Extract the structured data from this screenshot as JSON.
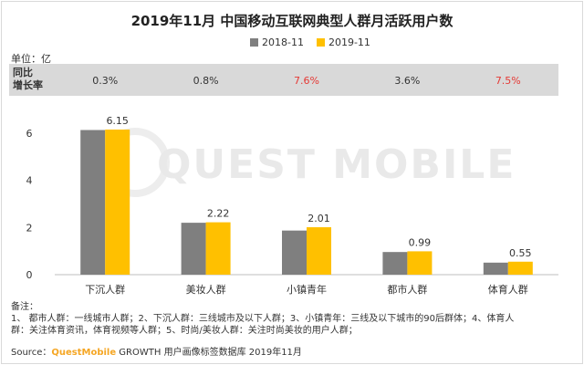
{
  "title": "2019年11月 中国移动互联网典型人群月活跃用户数",
  "unit": "单位：亿",
  "growth_label": "同比\n增长率",
  "growth_rates": [
    "0.3%",
    "0.8%",
    "7.6%",
    "3.6%",
    "7.5%"
  ],
  "growth_colors": [
    "#333333",
    "#333333",
    "#e53935",
    "#333333",
    "#e53935"
  ],
  "watermark": "QUEST MOBILE",
  "notes": {
    "heading": "备注：",
    "line1": "1、 都市人群：一线城市人群；2、下沉人群：三线城市及以下人群；3、小镇青年：三线及以下城市的90后群体；4、体育人",
    "line2": "群：关注体育资讯，体育视频等人群；5、时尚/美妆人群：关注时尚美妆的用户人群；"
  },
  "source": {
    "prefix": "Source：",
    "brand": "QuestMobile",
    "rest": " GROWTH 用户画像标签数据库  2019年11月"
  },
  "colors": {
    "series_2018": "#7f7f7f",
    "series_2019": "#ffc000"
  },
  "chart_data": {
    "type": "bar",
    "title": "2019年11月 中国移动互联网典型人群月活跃用户数",
    "categories": [
      "下沉人群",
      "美妆人群",
      "小镇青年",
      "都市人群",
      "体育人群"
    ],
    "series": [
      {
        "name": "2018-11",
        "values": [
          6.13,
          2.2,
          1.87,
          0.96,
          0.51
        ]
      },
      {
        "name": "2019-11",
        "values": [
          6.15,
          2.22,
          2.01,
          0.99,
          0.55
        ]
      }
    ],
    "data_labels": [
      "6.15",
      "2.22",
      "2.01",
      "0.99",
      "0.55"
    ],
    "yticks": [
      "0",
      "2",
      "4",
      "6"
    ],
    "ylim": [
      0,
      7
    ],
    "ylabel": "",
    "xlabel": "",
    "legend_position": "top",
    "grid": false
  }
}
